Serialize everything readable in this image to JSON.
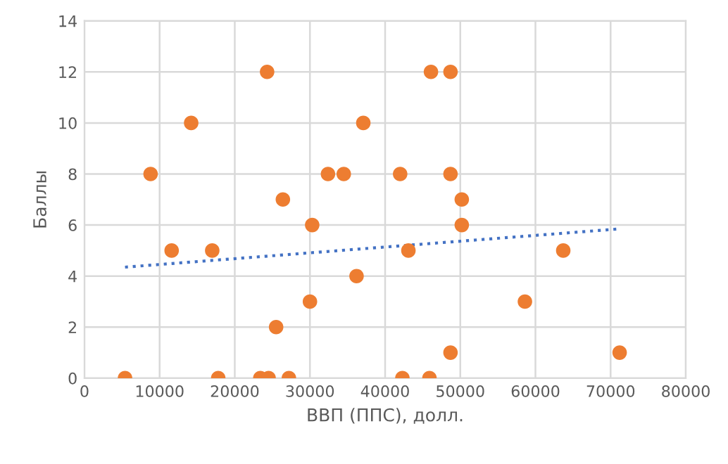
{
  "chart_data": {
    "type": "scatter",
    "xlabel": "ВВП (ППС), долл.",
    "ylabel": "Баллы",
    "xlim": [
      0,
      80000
    ],
    "xticks": [
      0,
      10000,
      20000,
      30000,
      40000,
      50000,
      60000,
      70000,
      80000
    ],
    "ylim": [
      0,
      14
    ],
    "yticks": [
      0,
      2,
      4,
      6,
      8,
      10,
      12,
      14
    ],
    "grid": true,
    "legend": false,
    "series": [
      {
        "type": "scatter",
        "color": "#ed7d31",
        "marker": "circle",
        "x": [
          5400,
          8800,
          11600,
          14200,
          17000,
          17800,
          23400,
          24500,
          24300,
          25500,
          26400,
          27200,
          30000,
          30300,
          32400,
          34500,
          36200,
          37100,
          42000,
          42300,
          43100,
          45900,
          46100,
          48700,
          48700,
          48700,
          50200,
          50200,
          58600,
          63700,
          71200
        ],
        "values": [
          0,
          8,
          5,
          10,
          5,
          0,
          0,
          0,
          12,
          2,
          7,
          0,
          3,
          6,
          8,
          8,
          4,
          10,
          8,
          0,
          5,
          0,
          12,
          12,
          8,
          1,
          7,
          6,
          3,
          5,
          1
        ]
      },
      {
        "type": "line",
        "color": "#4472c4",
        "line_style": "dotted",
        "marker": "none",
        "x": [
          5400,
          71200
        ],
        "values": [
          4.35,
          5.85
        ]
      }
    ]
  }
}
